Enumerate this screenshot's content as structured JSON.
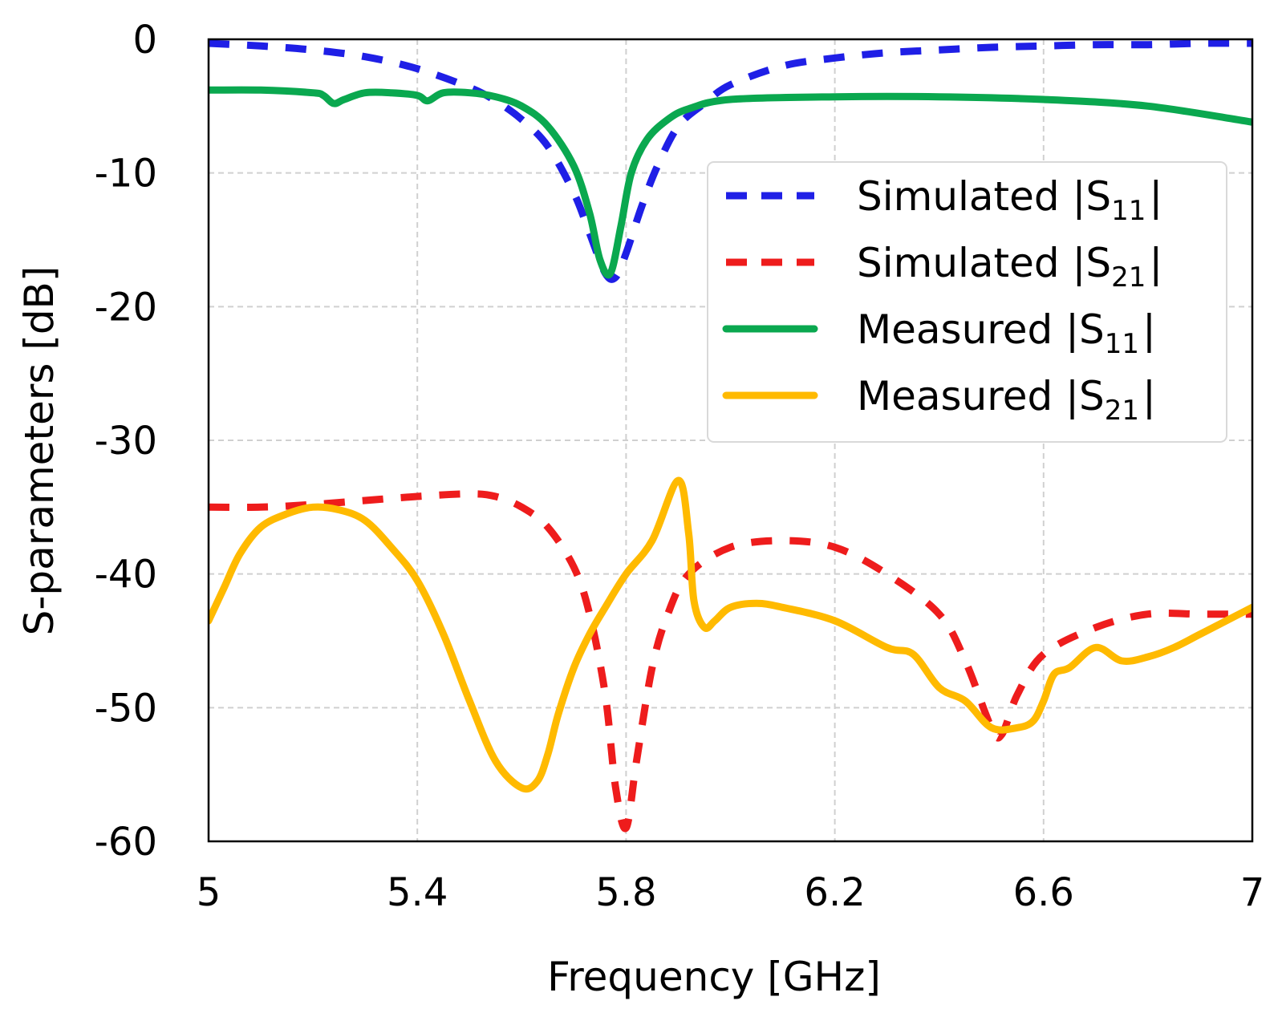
{
  "chart_data": {
    "type": "line",
    "title": "",
    "xlabel": "Frequency [GHz]",
    "ylabel": "S-parameters [dB]",
    "xlim": [
      5,
      7
    ],
    "ylim": [
      -60,
      0
    ],
    "xticks": [
      5,
      5.4,
      5.8,
      6.2,
      6.6,
      7
    ],
    "xtick_labels": [
      "5",
      "5.4",
      "5.8",
      "6.2",
      "6.6",
      "7"
    ],
    "yticks": [
      0,
      -10,
      -20,
      -30,
      -40,
      -50,
      -60
    ],
    "ytick_labels": [
      "0",
      "-10",
      "-20",
      "-30",
      "-40",
      "-50",
      "-60"
    ],
    "grid": true,
    "legend_position": "upper-right",
    "series": [
      {
        "name": "Simulated |S11|",
        "legend_main": "Simulated |S",
        "legend_sub": "11",
        "legend_end": "|",
        "color": "#1f1fe6",
        "style": "dashed",
        "x": [
          5.0,
          5.1,
          5.2,
          5.3,
          5.4,
          5.5,
          5.55,
          5.6,
          5.65,
          5.7,
          5.73,
          5.76,
          5.78,
          5.8,
          5.83,
          5.86,
          5.9,
          5.95,
          6.0,
          6.1,
          6.2,
          6.3,
          6.4,
          6.5,
          6.6,
          6.7,
          6.8,
          6.9,
          7.0
        ],
        "y": [
          -0.3,
          -0.5,
          -0.8,
          -1.3,
          -2.2,
          -3.6,
          -4.6,
          -6.0,
          -8.0,
          -11.5,
          -14.5,
          -17.5,
          -17.8,
          -16.0,
          -12.5,
          -9.5,
          -6.5,
          -4.8,
          -3.4,
          -2.0,
          -1.4,
          -1.0,
          -0.8,
          -0.6,
          -0.5,
          -0.4,
          -0.4,
          -0.3,
          -0.3
        ]
      },
      {
        "name": "Simulated |S21|",
        "legend_main": "Simulated |S",
        "legend_sub": "21",
        "legend_end": "|",
        "color": "#ee1c1c",
        "style": "dashed",
        "x": [
          5.0,
          5.1,
          5.2,
          5.3,
          5.4,
          5.5,
          5.55,
          5.6,
          5.65,
          5.7,
          5.73,
          5.76,
          5.78,
          5.8,
          5.82,
          5.85,
          5.88,
          5.92,
          6.0,
          6.1,
          6.2,
          6.3,
          6.4,
          6.45,
          6.5,
          6.52,
          6.55,
          6.6,
          6.7,
          6.8,
          6.9,
          7.0
        ],
        "y": [
          -35.0,
          -35.0,
          -34.8,
          -34.5,
          -34.2,
          -34.0,
          -34.2,
          -35.0,
          -36.5,
          -39.5,
          -43.0,
          -49.0,
          -56.0,
          -59.0,
          -54.0,
          -47.0,
          -43.0,
          -40.0,
          -38.0,
          -37.5,
          -38.0,
          -40.0,
          -43.0,
          -46.5,
          -51.5,
          -52.0,
          -49.0,
          -46.0,
          -44.0,
          -43.0,
          -43.0,
          -43.0
        ]
      },
      {
        "name": "Measured |S11|",
        "legend_main": "Measured |S",
        "legend_sub": "11",
        "legend_end": "|",
        "color": "#0aa84f",
        "style": "solid",
        "x": [
          5.0,
          5.1,
          5.2,
          5.22,
          5.24,
          5.26,
          5.3,
          5.35,
          5.4,
          5.42,
          5.45,
          5.5,
          5.55,
          5.6,
          5.65,
          5.7,
          5.73,
          5.75,
          5.77,
          5.79,
          5.81,
          5.84,
          5.88,
          5.92,
          6.0,
          6.2,
          6.4,
          6.6,
          6.8,
          7.0
        ],
        "y": [
          -3.8,
          -3.8,
          -4.0,
          -4.2,
          -4.8,
          -4.5,
          -4.0,
          -4.0,
          -4.2,
          -4.6,
          -4.0,
          -4.0,
          -4.3,
          -5.0,
          -6.5,
          -9.5,
          -13.0,
          -16.5,
          -17.5,
          -14.0,
          -10.0,
          -7.5,
          -6.0,
          -5.2,
          -4.5,
          -4.3,
          -4.3,
          -4.5,
          -5.0,
          -6.2
        ]
      },
      {
        "name": "Measured |S21|",
        "legend_main": "Measured |S",
        "legend_sub": "21",
        "legend_end": "|",
        "color": "#ffba00",
        "style": "solid",
        "x": [
          5.0,
          5.03,
          5.06,
          5.1,
          5.15,
          5.2,
          5.25,
          5.3,
          5.35,
          5.4,
          5.45,
          5.5,
          5.55,
          5.6,
          5.63,
          5.65,
          5.67,
          5.7,
          5.73,
          5.76,
          5.8,
          5.85,
          5.9,
          5.92,
          5.93,
          5.95,
          5.97,
          6.0,
          6.05,
          6.1,
          6.2,
          6.3,
          6.35,
          6.4,
          6.45,
          6.5,
          6.55,
          6.58,
          6.6,
          6.62,
          6.65,
          6.7,
          6.75,
          6.8,
          6.85,
          6.9,
          6.95,
          7.0
        ],
        "y": [
          -43.5,
          -41.0,
          -38.5,
          -36.5,
          -35.5,
          -35.0,
          -35.2,
          -36.0,
          -38.0,
          -40.5,
          -44.5,
          -49.5,
          -54.0,
          -56.0,
          -55.5,
          -53.5,
          -50.5,
          -47.0,
          -44.5,
          -42.5,
          -40.0,
          -37.5,
          -33.0,
          -37.0,
          -42.0,
          -44.0,
          -43.5,
          -42.5,
          -42.2,
          -42.5,
          -43.5,
          -45.5,
          -46.0,
          -48.5,
          -49.5,
          -51.5,
          -51.5,
          -51.0,
          -49.5,
          -47.5,
          -47.0,
          -45.5,
          -46.5,
          -46.2,
          -45.5,
          -44.5,
          -43.5,
          -42.5
        ]
      }
    ]
  }
}
